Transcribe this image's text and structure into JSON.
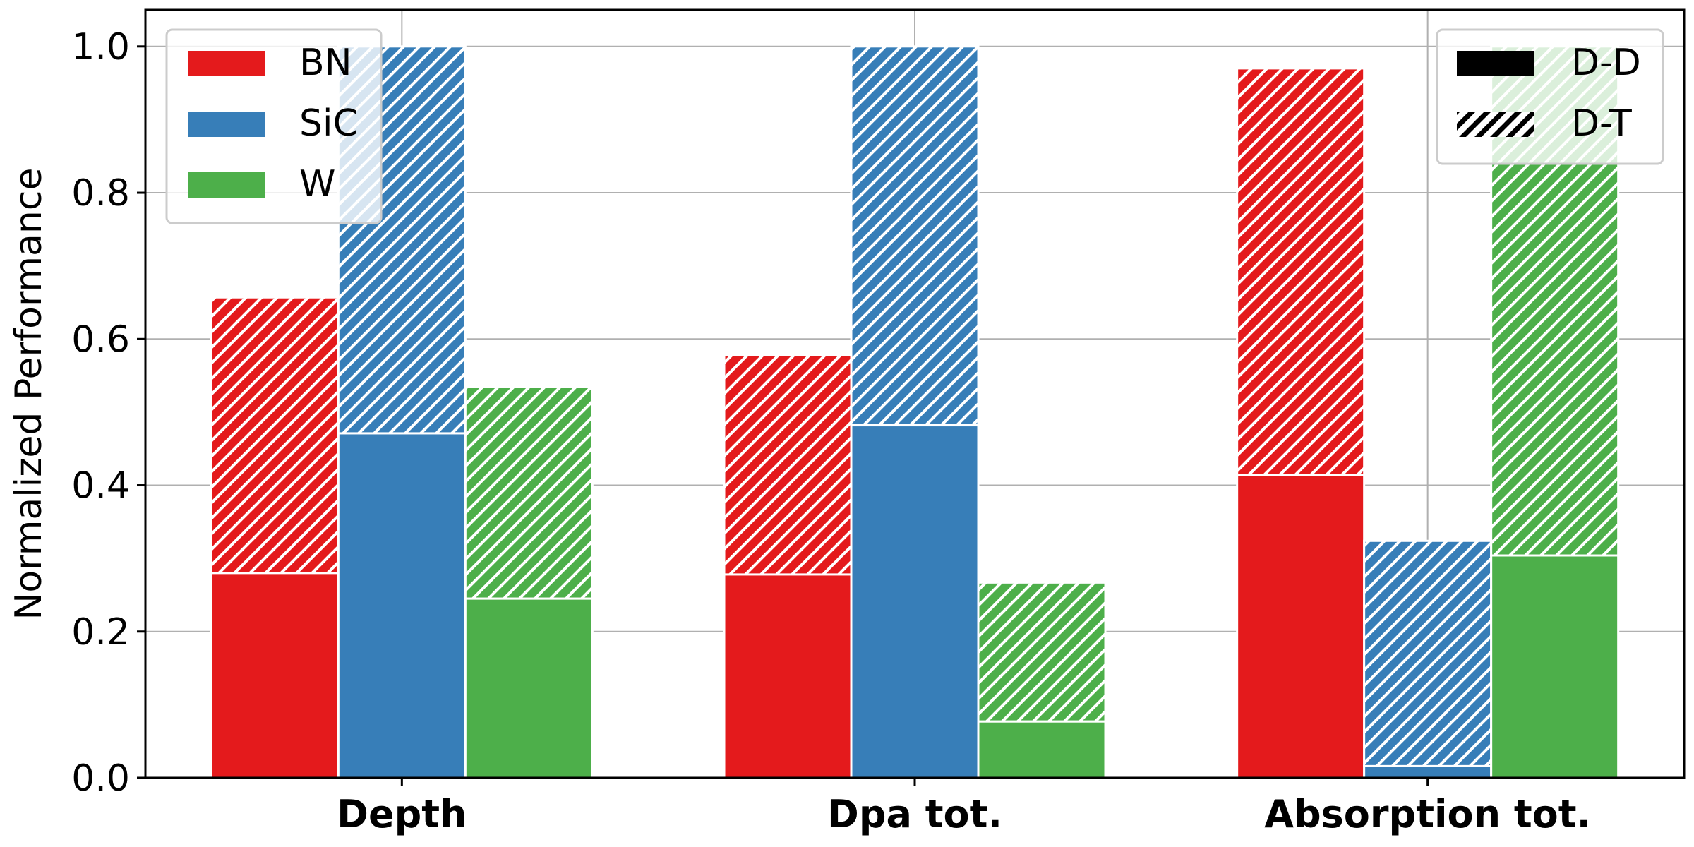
{
  "chart_data": {
    "type": "bar",
    "stacked": true,
    "ylabel": "Normalized Performance",
    "xlabel": "",
    "ylim": [
      0,
      1.05
    ],
    "yticks": [
      "0.0",
      "0.2",
      "0.4",
      "0.6",
      "0.8",
      "1.0"
    ],
    "grid": true,
    "categories": [
      "Depth",
      "Dpa tot.",
      "Absorption tot."
    ],
    "series": [
      {
        "name": "BN",
        "color": "#e41a1c",
        "dd": [
          0.28,
          0.278,
          0.414
        ],
        "total": [
          0.657,
          0.578,
          0.97
        ]
      },
      {
        "name": "SiC",
        "color": "#377eb8",
        "dd": [
          0.471,
          0.482,
          0.016
        ],
        "total": [
          1.0,
          1.0,
          0.324
        ]
      },
      {
        "name": "W",
        "color": "#4daf4a",
        "dd": [
          0.245,
          0.077,
          0.304
        ],
        "total": [
          0.535,
          0.267,
          1.0
        ]
      }
    ],
    "legend_materials": {
      "placement": "top-left",
      "entries": [
        "BN",
        "SiC",
        "W"
      ]
    },
    "legend_sources": {
      "placement": "top-right",
      "entries": [
        "D-D",
        "D-T"
      ],
      "styles": [
        "solid",
        "hatched"
      ]
    }
  }
}
